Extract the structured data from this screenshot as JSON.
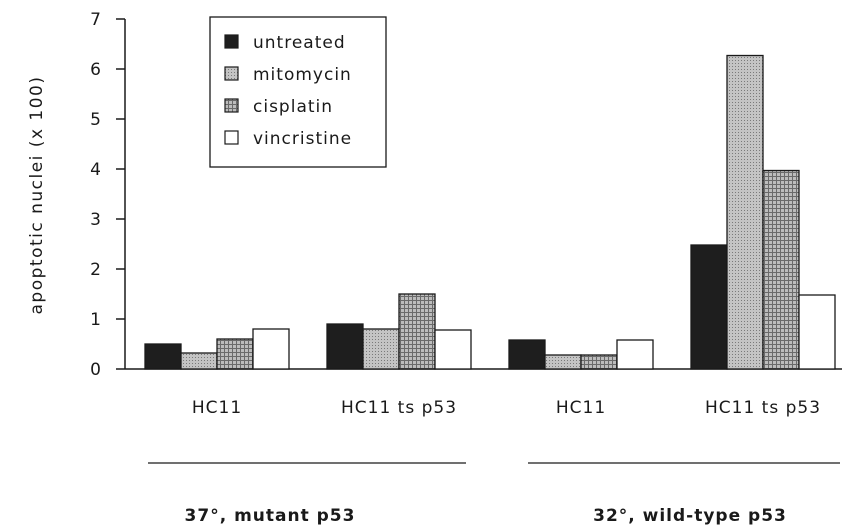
{
  "chart_data": {
    "type": "bar",
    "ylabel": "apoptotic nuclei (x 100)",
    "ylim": [
      0,
      7
    ],
    "yticks": [
      "0",
      "1",
      "2",
      "3",
      "4",
      "5",
      "6",
      "7"
    ],
    "categories": [
      "HC11",
      "HC11 ts p53",
      "HC11",
      "HC11 ts p53"
    ],
    "groups": [
      {
        "label": "37°, mutant p53",
        "categories": [
          0,
          1
        ]
      },
      {
        "label": "32°, wild-type p53",
        "categories": [
          2,
          3
        ]
      }
    ],
    "series": [
      {
        "name": "untreated",
        "values": [
          0.5,
          0.9,
          0.58,
          2.48
        ]
      },
      {
        "name": "mitomycin",
        "values": [
          0.32,
          0.8,
          0.28,
          6.27
        ]
      },
      {
        "name": "cisplatin",
        "values": [
          0.6,
          1.5,
          0.28,
          3.97
        ]
      },
      {
        "name": "vincristine",
        "values": [
          0.8,
          0.78,
          0.58,
          1.48
        ]
      }
    ],
    "legend_position": "top-center",
    "grid": false
  }
}
